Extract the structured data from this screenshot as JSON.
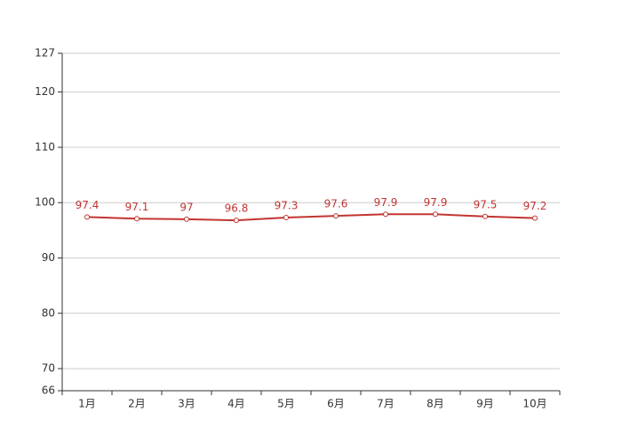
{
  "chart_data": {
    "type": "line",
    "categories": [
      "1月",
      "2月",
      "3月",
      "4月",
      "5月",
      "6月",
      "7月",
      "8月",
      "9月",
      "10月"
    ],
    "series": [
      {
        "color": "#c23531",
        "values": [
          97.4,
          97.1,
          97,
          96.8,
          97.3,
          97.6,
          97.9,
          97.9,
          97.5,
          97.2
        ]
      }
    ],
    "ylim": [
      66,
      127
    ],
    "yticks": [
      66,
      70,
      80,
      90,
      100,
      110,
      120,
      127
    ],
    "grid": true
  }
}
